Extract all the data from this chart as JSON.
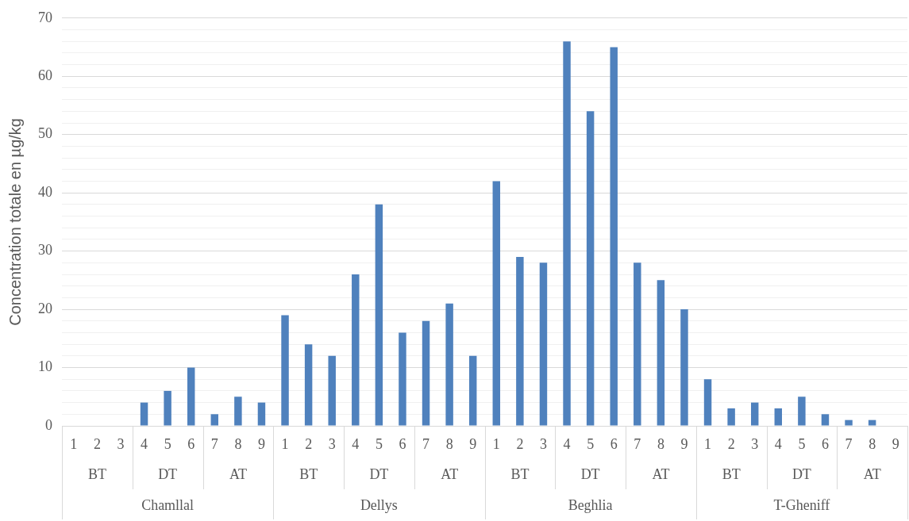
{
  "chart_data": {
    "type": "bar",
    "ylabel": "Concentration totale en µg/kg",
    "categories": [
      "1",
      "2",
      "3",
      "4",
      "5",
      "6",
      "7",
      "8",
      "9",
      "1",
      "2",
      "3",
      "4",
      "5",
      "6",
      "7",
      "8",
      "9",
      "1",
      "2",
      "3",
      "4",
      "5",
      "6",
      "7",
      "8",
      "9",
      "1",
      "2",
      "3",
      "4",
      "5",
      "6",
      "7",
      "8",
      "9"
    ],
    "values": [
      0,
      0,
      0,
      4,
      6,
      10,
      2,
      5,
      4,
      19,
      14,
      12,
      26,
      38,
      16,
      18,
      21,
      12,
      42,
      29,
      28,
      66,
      54,
      65,
      28,
      25,
      20,
      8,
      3,
      4,
      3,
      5,
      2,
      1,
      1,
      0
    ],
    "color": "#4f81bd",
    "ylim": [
      0,
      70
    ],
    "yticks": [
      0,
      {
        "value": 2,
        "label": null
      },
      {
        "value": 4,
        "label": null
      },
      {
        "value": 6,
        "label": null
      },
      {
        "value": 8,
        "label": null
      },
      10,
      {
        "value": 12,
        "label": null
      },
      {
        "value": 14,
        "label": null
      },
      {
        "value": 16,
        "label": null
      },
      {
        "value": 18,
        "label": null
      },
      20,
      {
        "value": 22,
        "label": null
      },
      {
        "value": 24,
        "label": null
      },
      {
        "value": 26,
        "label": null
      },
      {
        "value": 28,
        "label": null
      },
      30,
      {
        "value": 32,
        "label": null
      },
      {
        "value": 34,
        "label": null
      },
      {
        "value": 36,
        "label": null
      },
      {
        "value": 38,
        "label": null
      },
      40,
      {
        "value": 42,
        "label": null
      },
      {
        "value": 44,
        "label": null
      },
      {
        "value": 46,
        "label": null
      },
      {
        "value": 48,
        "label": null
      },
      50,
      {
        "value": 52,
        "label": null
      },
      {
        "value": 54,
        "label": null
      },
      {
        "value": 56,
        "label": null
      },
      {
        "value": 58,
        "label": null
      },
      60,
      {
        "value": 62,
        "label": null
      },
      {
        "value": 64,
        "label": null
      },
      {
        "value": 66,
        "label": null
      },
      {
        "value": 68,
        "label": null
      },
      70
    ],
    "grid": "y",
    "annotations": [
      "BT",
      "DT",
      "AT",
      "BT",
      "DT",
      "AT",
      "BT",
      "DT",
      "AT",
      "BT",
      "DT",
      "AT",
      "Chamllal",
      "Dellys",
      "Beghlia",
      "T-Gheniff"
    ]
  }
}
